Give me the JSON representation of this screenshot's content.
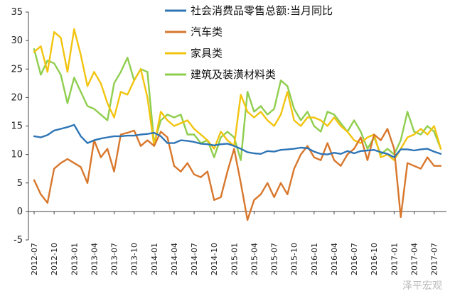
{
  "chart_data": {
    "type": "line",
    "title": "",
    "xlabel": "",
    "ylabel": "",
    "ylim": [
      -5,
      35
    ],
    "y_ticks": [
      -5,
      0,
      5,
      10,
      15,
      20,
      25,
      30,
      35
    ],
    "x_tick_labels": [
      "2012-07",
      "2012-10",
      "2013-01",
      "2013-04",
      "2013-07",
      "2013-10",
      "2014-01",
      "2014-04",
      "2014-07",
      "2014-10",
      "2015-01",
      "2015-04",
      "2015-07",
      "2015-10",
      "2016-01",
      "2016-04",
      "2016-07",
      "2016-10",
      "2017-01",
      "2017-04",
      "2017-07"
    ],
    "grid": false,
    "legend_position": "top-right",
    "months": [
      "2012-07",
      "2012-08",
      "2012-09",
      "2012-10",
      "2012-11",
      "2012-12",
      "2013-01",
      "2013-02",
      "2013-03",
      "2013-04",
      "2013-05",
      "2013-06",
      "2013-07",
      "2013-08",
      "2013-09",
      "2013-10",
      "2013-11",
      "2013-12",
      "2014-01",
      "2014-02",
      "2014-03",
      "2014-04",
      "2014-05",
      "2014-06",
      "2014-07",
      "2014-08",
      "2014-09",
      "2014-10",
      "2014-11",
      "2014-12",
      "2015-01",
      "2015-02",
      "2015-03",
      "2015-04",
      "2015-05",
      "2015-06",
      "2015-07",
      "2015-08",
      "2015-09",
      "2015-10",
      "2015-11",
      "2015-12",
      "2016-01",
      "2016-02",
      "2016-03",
      "2016-04",
      "2016-05",
      "2016-06",
      "2016-07",
      "2016-08",
      "2016-09",
      "2016-10",
      "2016-11",
      "2016-12",
      "2017-01",
      "2017-02",
      "2017-03",
      "2017-04",
      "2017-05",
      "2017-06",
      "2017-07",
      "2017-08"
    ],
    "series": [
      {
        "name": "社会消费品零售总额:当月同比",
        "color": "#2e75b6",
        "values": [
          13.2,
          13.0,
          13.4,
          14.2,
          14.5,
          14.8,
          15.2,
          13.2,
          12.0,
          12.5,
          12.8,
          13.0,
          13.2,
          13.2,
          13.3,
          13.3,
          13.5,
          13.6,
          13.8,
          13.2,
          12.0,
          12.0,
          12.5,
          12.4,
          12.2,
          11.9,
          11.8,
          11.6,
          11.8,
          11.9,
          11.5,
          11.0,
          10.4,
          10.2,
          10.1,
          10.6,
          10.5,
          10.8,
          10.9,
          11.0,
          11.2,
          11.1,
          10.5,
          10.1,
          10.0,
          10.3,
          10.1,
          10.6,
          10.2,
          10.6,
          10.7,
          10.8,
          10.4,
          10.1,
          9.5,
          10.9,
          10.9,
          10.7,
          10.9,
          11.0,
          10.5,
          10.1
        ]
      },
      {
        "name": "汽车类",
        "color": "#d8772c",
        "values": [
          5.5,
          3.0,
          1.5,
          7.5,
          8.5,
          9.2,
          8.5,
          7.8,
          5.0,
          12.5,
          9.5,
          11.0,
          7.0,
          13.5,
          13.8,
          14.2,
          11.5,
          12.5,
          11.5,
          14.0,
          13.0,
          8.0,
          7.0,
          8.5,
          6.5,
          6.0,
          7.0,
          2.0,
          2.5,
          7.0,
          11.0,
          5.0,
          -1.5,
          2.0,
          3.0,
          5.0,
          2.5,
          5.0,
          3.0,
          7.5,
          10.0,
          11.5,
          9.5,
          9.0,
          12.0,
          9.0,
          8.0,
          10.0,
          11.0,
          13.0,
          9.0,
          13.5,
          12.5,
          14.5,
          11.0,
          -1.0,
          8.5,
          8.0,
          7.5,
          9.5,
          8.0,
          8.0
        ]
      },
      {
        "name": "家具类",
        "color": "#f2c40f",
        "values": [
          28.0,
          29.0,
          24.5,
          31.5,
          30.5,
          24.5,
          32.0,
          27.5,
          22.0,
          24.5,
          22.5,
          19.0,
          16.5,
          21.0,
          20.5,
          23.0,
          25.0,
          20.0,
          11.5,
          17.5,
          16.0,
          15.0,
          15.5,
          16.0,
          14.5,
          13.5,
          12.5,
          11.0,
          14.0,
          12.5,
          11.5,
          20.5,
          17.5,
          16.5,
          17.5,
          16.0,
          15.0,
          17.0,
          21.0,
          16.0,
          15.0,
          16.5,
          16.5,
          16.0,
          15.0,
          16.5,
          15.0,
          14.0,
          12.5,
          12.0,
          13.0,
          13.5,
          9.5,
          10.0,
          9.0,
          11.0,
          13.0,
          13.5,
          14.5,
          13.5,
          15.0,
          11.0
        ]
      },
      {
        "name": "建筑及装潢材料类",
        "color": "#8fce4e",
        "values": [
          28.5,
          24.0,
          26.5,
          26.0,
          24.0,
          19.0,
          23.5,
          21.0,
          18.5,
          18.0,
          17.0,
          16.0,
          22.5,
          24.5,
          27.0,
          23.0,
          25.0,
          24.5,
          12.0,
          16.0,
          17.0,
          16.5,
          17.0,
          13.5,
          13.5,
          12.0,
          12.5,
          9.5,
          13.0,
          14.0,
          13.0,
          9.0,
          21.0,
          17.5,
          18.5,
          17.0,
          18.0,
          23.0,
          22.0,
          18.0,
          16.0,
          17.5,
          15.0,
          14.0,
          17.5,
          17.0,
          15.5,
          14.0,
          16.0,
          14.0,
          11.0,
          13.0,
          10.0,
          11.0,
          10.0,
          12.5,
          17.5,
          14.0,
          13.5,
          15.0,
          14.0,
          11.0
        ]
      }
    ],
    "watermark": "泽平宏观"
  }
}
